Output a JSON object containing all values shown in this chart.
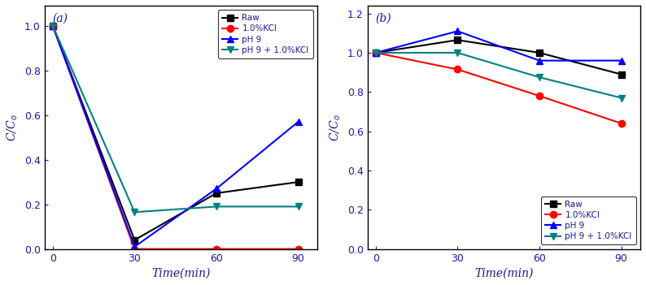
{
  "time": [
    0,
    30,
    60,
    90
  ],
  "panel_a": {
    "label": "(a)",
    "ylabel": "C/C$_o$",
    "xlabel": "Time(min)",
    "ylim": [
      0.0,
      1.09
    ],
    "yticks": [
      0.0,
      0.2,
      0.4,
      0.6,
      0.8,
      1.0
    ],
    "xlim": [
      -3,
      97
    ],
    "series": [
      {
        "label": "Raw",
        "color": "#000000",
        "marker": "s",
        "data": [
          1.0,
          0.04,
          0.25,
          0.3
        ]
      },
      {
        "label": "1.0%KCl",
        "color": "#ff0000",
        "marker": "o",
        "data": [
          1.0,
          0.0,
          0.0,
          0.0
        ]
      },
      {
        "label": "pH 9",
        "color": "#0000ff",
        "marker": "^",
        "data": [
          1.0,
          0.01,
          0.27,
          0.57
        ]
      },
      {
        "label": "pH 9 + 1.0%KCl",
        "color": "#008080",
        "marker": "v",
        "data": [
          1.0,
          0.165,
          0.19,
          0.19
        ]
      }
    ],
    "legend_loc": "upper right"
  },
  "panel_b": {
    "label": "(b)",
    "ylabel": "C/C$_o$",
    "xlabel": "Time(min)",
    "ylim": [
      0.0,
      1.24
    ],
    "yticks": [
      0.0,
      0.2,
      0.4,
      0.6,
      0.8,
      1.0,
      1.2
    ],
    "xlim": [
      -3,
      97
    ],
    "series": [
      {
        "label": "Raw",
        "color": "#000000",
        "marker": "s",
        "data": [
          1.0,
          1.065,
          1.0,
          0.89
        ]
      },
      {
        "label": "1.0%KCl",
        "color": "#ff0000",
        "marker": "o",
        "data": [
          1.0,
          0.915,
          0.78,
          0.64
        ]
      },
      {
        "label": "pH 9",
        "color": "#0000ff",
        "marker": "^",
        "data": [
          1.0,
          1.11,
          0.96,
          0.96
        ]
      },
      {
        "label": "pH 9 + 1.0%KCl",
        "color": "#008080",
        "marker": "v",
        "data": [
          1.0,
          1.0,
          0.875,
          0.77
        ]
      }
    ],
    "legend_loc": "lower right"
  },
  "label_color": "#1a1a8c",
  "tick_color": "#1a1aaa",
  "spine_color": "#000000",
  "label_fontsize": 10,
  "tick_fontsize": 9,
  "panel_label_fontsize": 10,
  "marker_size": 6,
  "linewidth": 1.5
}
